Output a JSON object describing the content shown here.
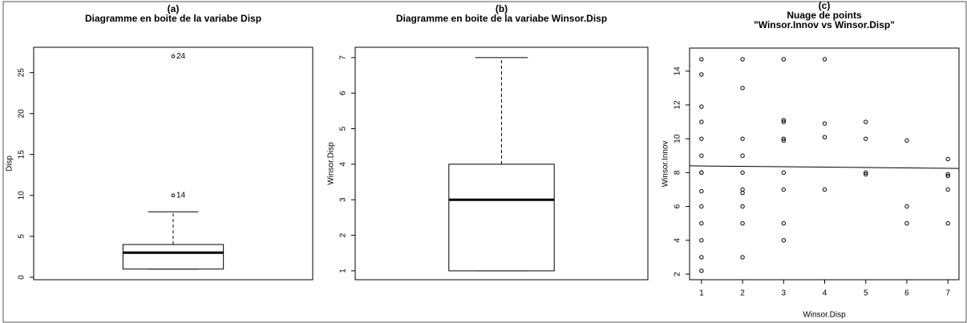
{
  "chart_data": [
    {
      "type": "box",
      "label": "(a)",
      "title": "Diagramme en boite de la variabe Disp",
      "ylabel": "Disp",
      "whisker_low": 1,
      "q1": 1,
      "median": 3,
      "q3": 4,
      "whisker_high": 8,
      "outliers": [
        10,
        27
      ],
      "outlier_labels": [
        "14",
        "24"
      ],
      "ylim": [
        -0.3,
        28.1
      ],
      "yticks": [
        0,
        5,
        10,
        15,
        20,
        25
      ],
      "color": "#000000"
    },
    {
      "type": "box",
      "label": "(b)",
      "title": "Diagramme en boite de la variabe Winsor.Disp",
      "ylabel": "Winsor.Disp",
      "whisker_low": 1,
      "q1": 1,
      "median": 3,
      "q3": 4,
      "whisker_high": 7,
      "outliers": [],
      "outlier_labels": [],
      "ylim": [
        0.75,
        7.29
      ],
      "yticks": [
        1,
        2,
        3,
        4,
        5,
        6,
        7
      ],
      "color": "#000000"
    },
    {
      "type": "scatter",
      "label": "(c)",
      "title": "Nuage de points",
      "subtitle": "\"Winsor.Innov vs Winsor.Disp\"",
      "xlabel": "Winsor.Disp",
      "ylabel": "Winsor.Innov",
      "x": [
        1,
        1,
        1,
        1,
        1,
        1,
        1,
        1,
        1,
        1,
        1,
        1,
        1,
        1,
        2,
        2,
        2,
        2,
        2,
        2,
        2,
        2,
        2,
        2,
        3,
        3,
        3,
        3,
        3,
        3,
        3,
        3,
        3,
        4,
        4,
        4,
        4,
        5,
        5,
        5,
        5,
        6,
        6,
        6,
        7,
        7,
        7,
        7,
        7
      ],
      "y": [
        14.7,
        13.8,
        11.9,
        11,
        10,
        9,
        8,
        8,
        6.9,
        6,
        5,
        4,
        3,
        2.2,
        14.7,
        13,
        10,
        9,
        8,
        7,
        6.8,
        6,
        5,
        3,
        14.7,
        11.1,
        11,
        10,
        9.9,
        8,
        7,
        5,
        4,
        14.7,
        10.9,
        10.1,
        7,
        11,
        10,
        8,
        7.9,
        9.9,
        6,
        5,
        8.8,
        7.9,
        7.8,
        7,
        5
      ],
      "trend": {
        "x": [
          0.71,
          7.27
        ],
        "y": [
          8.4,
          8.25
        ]
      },
      "xlim": [
        0.71,
        7.27
      ],
      "ylim": [
        1.67,
        15.36
      ],
      "xticks": [
        1,
        2,
        3,
        4,
        5,
        6,
        7
      ],
      "yticks": [
        2,
        4,
        6,
        8,
        10,
        12,
        14
      ],
      "color": "#000000"
    }
  ]
}
